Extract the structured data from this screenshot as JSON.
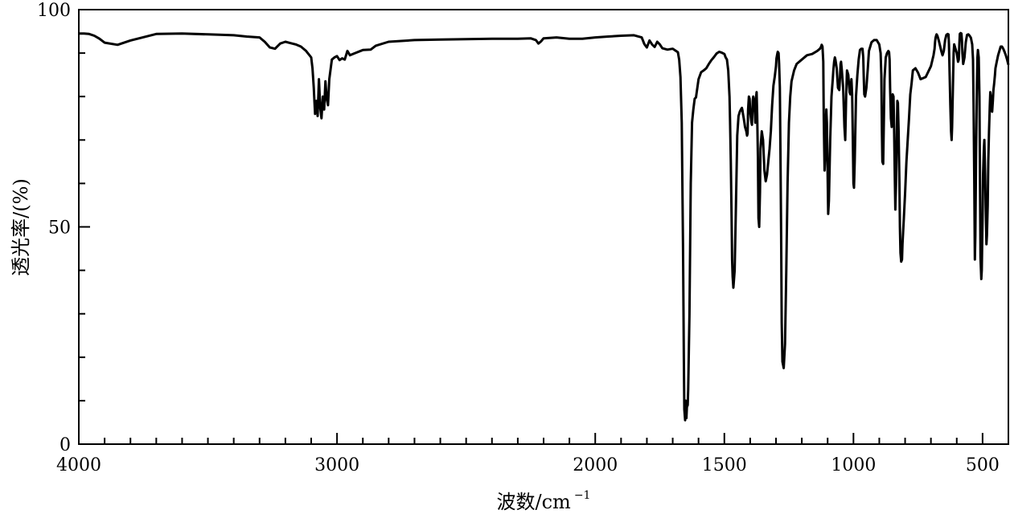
{
  "chart_data": {
    "type": "line",
    "title": "",
    "xlabel": "波数/cm",
    "xlabel_superscript": "−1",
    "ylabel": "透光率/(%)",
    "x_reversed": true,
    "xlim": [
      4000,
      400
    ],
    "ylim": [
      0,
      100
    ],
    "x_ticks": [
      4000,
      3000,
      2000,
      1500,
      1000,
      500
    ],
    "x_tick_labels": [
      "4000",
      "3000",
      "2000",
      "1500",
      "1000",
      "500"
    ],
    "y_ticks": [
      0,
      50,
      100
    ],
    "y_tick_labels": [
      "0",
      "50",
      "100"
    ],
    "grid": false,
    "legend": "none",
    "series": [
      {
        "color": "#000000",
        "x": [
          4000,
          3980,
          3960,
          3940,
          3920,
          3900,
          3850,
          3800,
          3700,
          3600,
          3500,
          3400,
          3350,
          3300,
          3280,
          3260,
          3240,
          3220,
          3200,
          3180,
          3160,
          3140,
          3120,
          3100,
          3095,
          3090,
          3085,
          3080,
          3075,
          3070,
          3065,
          3060,
          3055,
          3050,
          3045,
          3040,
          3035,
          3030,
          3020,
          3010,
          3000,
          2990,
          2980,
          2970,
          2960,
          2950,
          2930,
          2900,
          2870,
          2850,
          2800,
          2700,
          2600,
          2500,
          2400,
          2300,
          2250,
          2230,
          2220,
          2210,
          2200,
          2150,
          2100,
          2050,
          2000,
          1950,
          1900,
          1850,
          1820,
          1810,
          1800,
          1790,
          1780,
          1770,
          1760,
          1750,
          1740,
          1720,
          1710,
          1700,
          1690,
          1680,
          1675,
          1670,
          1665,
          1660,
          1657,
          1655,
          1652,
          1650,
          1647,
          1645,
          1642,
          1640,
          1635,
          1630,
          1625,
          1620,
          1615,
          1610,
          1600,
          1590,
          1580,
          1570,
          1560,
          1550,
          1540,
          1530,
          1520,
          1510,
          1500,
          1495,
          1490,
          1485,
          1480,
          1478,
          1475,
          1472,
          1470,
          1468,
          1465,
          1460,
          1455,
          1450,
          1445,
          1440,
          1435,
          1432,
          1430,
          1428,
          1425,
          1420,
          1415,
          1412,
          1410,
          1408,
          1405,
          1402,
          1400,
          1395,
          1393,
          1390,
          1388,
          1385,
          1382,
          1380,
          1378,
          1375,
          1373,
          1370,
          1368,
          1365,
          1362,
          1360,
          1355,
          1350,
          1345,
          1340,
          1335,
          1330,
          1325,
          1320,
          1315,
          1310,
          1305,
          1300,
          1298,
          1295,
          1293,
          1290,
          1288,
          1285,
          1283,
          1280,
          1278,
          1275,
          1270,
          1265,
          1260,
          1255,
          1250,
          1245,
          1240,
          1230,
          1220,
          1200,
          1180,
          1160,
          1140,
          1130,
          1125,
          1123,
          1120,
          1117,
          1115,
          1112,
          1110,
          1108,
          1105,
          1103,
          1100,
          1098,
          1095,
          1090,
          1085,
          1080,
          1078,
          1075,
          1072,
          1070,
          1065,
          1060,
          1055,
          1052,
          1050,
          1048,
          1045,
          1040,
          1035,
          1032,
          1030,
          1028,
          1025,
          1020,
          1015,
          1012,
          1010,
          1008,
          1005,
          1003,
          1000,
          998,
          995,
          990,
          985,
          980,
          975,
          970,
          965,
          962,
          960,
          958,
          955,
          950,
          945,
          940,
          930,
          920,
          910,
          900,
          895,
          892,
          890,
          888,
          885,
          882,
          880,
          875,
          870,
          865,
          862,
          860,
          858,
          855,
          852,
          850,
          848,
          845,
          843,
          840,
          838,
          835,
          832,
          830,
          828,
          825,
          822,
          820,
          818,
          815,
          812,
          810,
          805,
          800,
          795,
          790,
          785,
          780,
          775,
          770,
          760,
          750,
          740,
          720,
          700,
          690,
          686,
          684,
          682,
          680,
          678,
          675,
          670,
          660,
          655,
          650,
          645,
          640,
          635,
          632,
          630,
          628,
          625,
          622,
          620,
          618,
          615,
          612,
          610,
          605,
          600,
          595,
          592,
          590,
          588,
          585,
          582,
          580,
          578,
          575,
          570,
          565,
          560,
          555,
          550,
          545,
          540,
          537,
          535,
          532,
          530,
          528,
          525,
          522,
          520,
          518,
          515,
          512,
          510,
          508,
          505,
          503,
          500,
          498,
          495,
          493,
          490,
          488,
          485,
          483,
          480,
          478,
          475,
          472,
          470,
          468,
          465,
          463,
          460,
          458,
          455,
          452,
          450,
          445,
          440,
          435,
          430,
          425,
          420,
          415,
          410,
          405,
          400
        ],
        "y": [
          94.5,
          94.5,
          94.4,
          94.0,
          93.3,
          92.4,
          91.9,
          92.9,
          94.4,
          94.5,
          94.3,
          94.1,
          93.8,
          93.6,
          92.6,
          91.3,
          91.0,
          92.2,
          92.6,
          92.3,
          92.0,
          91.5,
          90.5,
          89.0,
          86.5,
          82.0,
          76.0,
          79.0,
          75.5,
          84.0,
          77.5,
          75.0,
          80.0,
          77.0,
          83.5,
          79.5,
          78.0,
          84.0,
          88.5,
          89.0,
          89.3,
          88.4,
          88.8,
          88.5,
          90.5,
          89.5,
          90.0,
          90.7,
          90.8,
          91.7,
          92.6,
          93.0,
          93.1,
          93.2,
          93.3,
          93.3,
          93.4,
          93.0,
          92.2,
          92.7,
          93.4,
          93.6,
          93.3,
          93.3,
          93.6,
          93.8,
          94.0,
          94.1,
          93.6,
          92.1,
          91.3,
          92.9,
          92.0,
          91.4,
          92.6,
          92.0,
          91.1,
          90.8,
          90.9,
          91.0,
          90.6,
          90.2,
          88.5,
          84.5,
          74.0,
          45.0,
          20.0,
          8.0,
          5.5,
          10.0,
          6.0,
          8.5,
          9.0,
          12.5,
          30.0,
          60.0,
          74.0,
          77.0,
          79.5,
          79.8,
          84.0,
          85.6,
          86.0,
          86.5,
          87.5,
          88.4,
          89.1,
          89.9,
          90.3,
          90.1,
          89.8,
          89.0,
          88.5,
          86.0,
          80.0,
          75.0,
          65.0,
          52.0,
          42.5,
          38.5,
          36.0,
          40.0,
          55.0,
          71.0,
          75.5,
          76.5,
          77.1,
          77.4,
          76.8,
          76.0,
          75.0,
          73.0,
          72.0,
          71.0,
          71.5,
          77.0,
          80.0,
          79.5,
          76.5,
          74.0,
          73.5,
          79.0,
          80.0,
          78.5,
          76.5,
          74.0,
          79.5,
          81.0,
          76.0,
          66.0,
          52.0,
          50.0,
          58.0,
          68.0,
          72.0,
          70.0,
          63.0,
          60.5,
          62.0,
          65.0,
          68.0,
          72.0,
          78.0,
          82.5,
          84.5,
          87.0,
          88.8,
          89.8,
          90.3,
          90.0,
          87.5,
          82.0,
          68.0,
          48.0,
          28.0,
          19.0,
          17.5,
          23.0,
          40.0,
          60.0,
          74.0,
          80.0,
          83.5,
          86.0,
          87.5,
          88.5,
          89.5,
          89.8,
          90.5,
          91.0,
          91.5,
          91.9,
          91.5,
          88.0,
          75.0,
          63.0,
          65.5,
          72.5,
          77.0,
          74.0,
          62.0,
          53.0,
          56.0,
          70.0,
          80.0,
          84.0,
          86.0,
          88.0,
          89.0,
          88.5,
          86.5,
          82.0,
          81.5,
          84.5,
          87.5,
          88.0,
          86.0,
          82.0,
          73.0,
          70.0,
          75.0,
          80.5,
          86.0,
          85.0,
          81.0,
          80.5,
          82.5,
          84.0,
          80.5,
          72.0,
          60.0,
          59.0,
          65.0,
          80.0,
          85.0,
          88.5,
          90.7,
          91.0,
          91.0,
          89.0,
          84.0,
          80.5,
          80.0,
          82.0,
          86.0,
          90.5,
          92.5,
          93.0,
          93.0,
          92.0,
          90.0,
          85.0,
          72.0,
          65.0,
          64.5,
          75.0,
          84.0,
          89.0,
          90.0,
          90.5,
          90.2,
          88.5,
          82.0,
          75.0,
          73.0,
          76.0,
          80.5,
          80.0,
          75.0,
          62.0,
          54.0,
          60.0,
          72.0,
          79.0,
          78.5,
          72.0,
          60.0,
          50.0,
          44.0,
          42.0,
          42.5,
          46.0,
          52.0,
          58.0,
          65.0,
          70.0,
          75.0,
          80.5,
          83.0,
          86.0,
          86.5,
          85.5,
          84.0,
          84.5,
          87.0,
          89.5,
          91.0,
          92.5,
          93.5,
          94.0,
          94.3,
          94.0,
          93.0,
          90.5,
          89.5,
          90.5,
          93.0,
          94.2,
          94.4,
          94.3,
          92.0,
          86.0,
          78.0,
          72.0,
          70.0,
          73.0,
          82.0,
          90.0,
          92.0,
          91.0,
          90.0,
          88.0,
          88.5,
          92.0,
          94.4,
          94.6,
          94.5,
          93.0,
          90.0,
          87.5,
          89.0,
          92.5,
          94.2,
          94.3,
          94.0,
          93.5,
          92.0,
          88.5,
          78.0,
          60.0,
          42.5,
          48.0,
          68.0,
          82.0,
          89.0,
          90.7,
          89.0,
          80.0,
          60.0,
          43.0,
          38.0,
          40.0,
          52.0,
          62.0,
          68.0,
          70.0,
          62.0,
          55.0,
          46.0,
          48.0,
          55.0,
          65.0,
          72.0,
          78.0,
          81.0,
          80.0,
          77.0,
          76.5,
          79.0,
          81.5,
          83.0,
          85.0,
          86.5,
          88.0,
          89.5,
          90.5,
          91.5,
          91.5,
          91.0,
          90.3,
          89.5,
          88.5,
          87.3
        ]
      }
    ]
  }
}
